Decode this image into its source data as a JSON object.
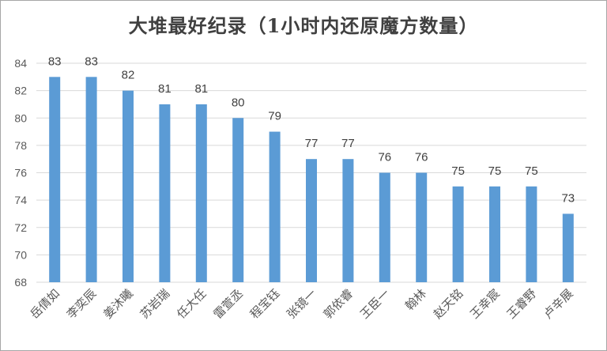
{
  "chart_data": {
    "type": "bar",
    "title": "大堆最好纪录（1小时内还原魔方数量）",
    "categories": [
      "岳倩如",
      "李奕辰",
      "姜沐曦",
      "苏岩瑞",
      "任大任",
      "雷萱丞",
      "程宝钰",
      "张镜一",
      "郭依睿",
      "王臣一",
      "翰林",
      "赵天铭",
      "王幸宸",
      "王睿野",
      "卢辛展"
    ],
    "values": [
      83,
      83,
      82,
      81,
      81,
      80,
      79,
      77,
      77,
      76,
      76,
      75,
      75,
      75,
      73
    ],
    "xlabel": "",
    "ylabel": "",
    "ylim": [
      68,
      84
    ],
    "yticks": [
      68,
      70,
      72,
      74,
      76,
      78,
      80,
      82,
      84
    ],
    "bar_color": "#5b9bd5",
    "grid": true,
    "legend": false
  }
}
